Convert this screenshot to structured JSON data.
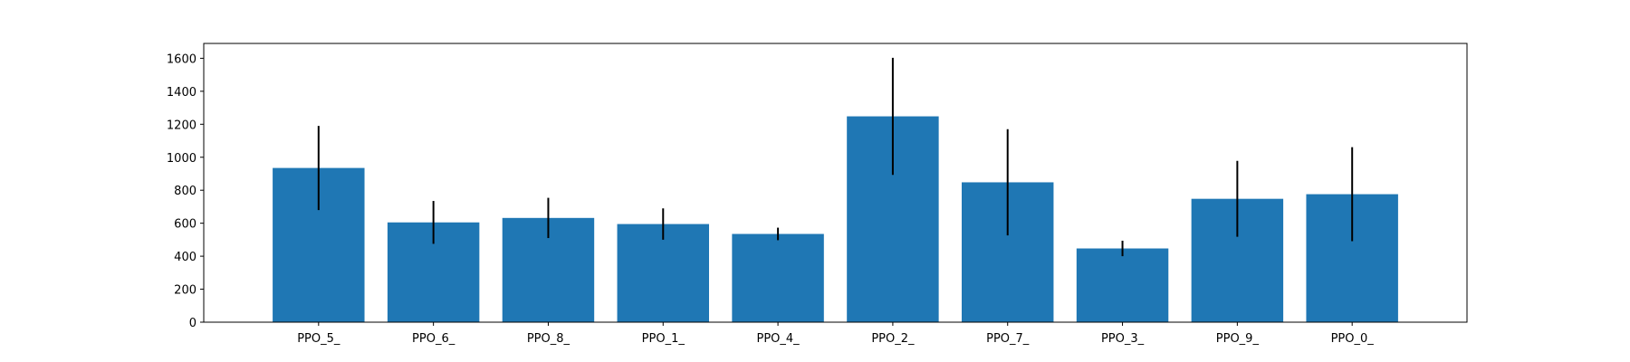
{
  "chart_data": {
    "type": "bar",
    "title": "",
    "xlabel": "",
    "ylabel": "",
    "categories": [
      "PPO_5_",
      "PPO_6_",
      "PPO_8_",
      "PPO_1_",
      "PPO_4_",
      "PPO_2_",
      "PPO_7_",
      "PPO_3_",
      "PPO_9_",
      "PPO_0_"
    ],
    "values": [
      935,
      605,
      632,
      595,
      535,
      1248,
      848,
      447,
      748,
      776
    ],
    "errors": [
      255,
      130,
      122,
      95,
      38,
      355,
      322,
      47,
      230,
      285
    ],
    "ylim": [
      0,
      1690
    ],
    "yticks": [
      0,
      200,
      400,
      600,
      800,
      1000,
      1200,
      1400,
      1600
    ],
    "grid": false,
    "bar_color": "#1f77b4",
    "error_color": "#000000"
  }
}
